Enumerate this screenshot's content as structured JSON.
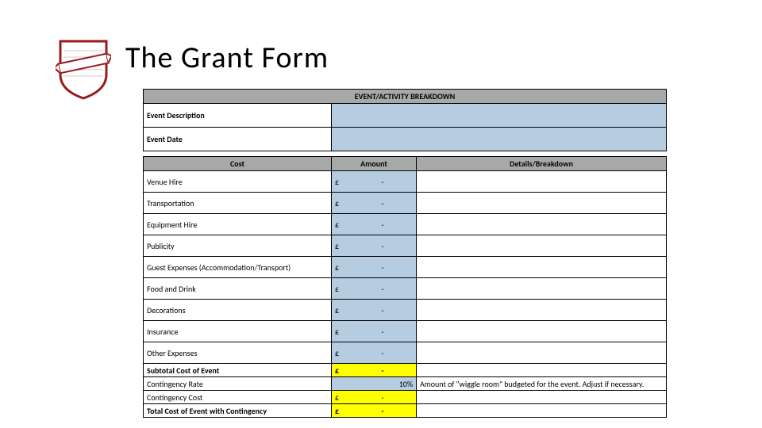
{
  "title": "The Grant Form",
  "logo": {
    "shield_stroke": "#9a1b1e",
    "shield_fill": "#ffffff",
    "banner_fill": "#ffffff",
    "banner_stroke": "#9a1b1e"
  },
  "form": {
    "section_header": "EVENT/ACTIVITY BREAKDOWN",
    "meta": [
      {
        "label": "Event Description"
      },
      {
        "label": "Event Date"
      }
    ],
    "columns": {
      "cost": "Cost",
      "amount": "Amount",
      "details": "Details/Breakdown"
    },
    "currency": "£",
    "dash": "-",
    "costs": [
      {
        "label": "Venue Hire"
      },
      {
        "label": "Transportation"
      },
      {
        "label": "Equipment Hire"
      },
      {
        "label": "Publicity"
      },
      {
        "label": "Guest Expenses (Accommodation/Transport)"
      },
      {
        "label": "Food and Drink"
      },
      {
        "label": "Decorations"
      },
      {
        "label": "Insurance"
      },
      {
        "label": "Other Expenses"
      }
    ],
    "summary": {
      "subtotal_label": "Subtotal Cost of Event",
      "contingency_rate_label": "Contingency Rate",
      "contingency_rate_value": "10%",
      "contingency_rate_details": "Amount of \"wiggle room\" budgeted for the event. Adjust if necessary.",
      "contingency_cost_label": "Contingency Cost",
      "total_label": "Total Cost of Event with Contingency"
    }
  },
  "colors": {
    "header_bg": "#a7a9a8",
    "input_bg": "#b6cde1",
    "highlight_bg": "#ffff00",
    "border": "#000000",
    "text": "#000000"
  }
}
